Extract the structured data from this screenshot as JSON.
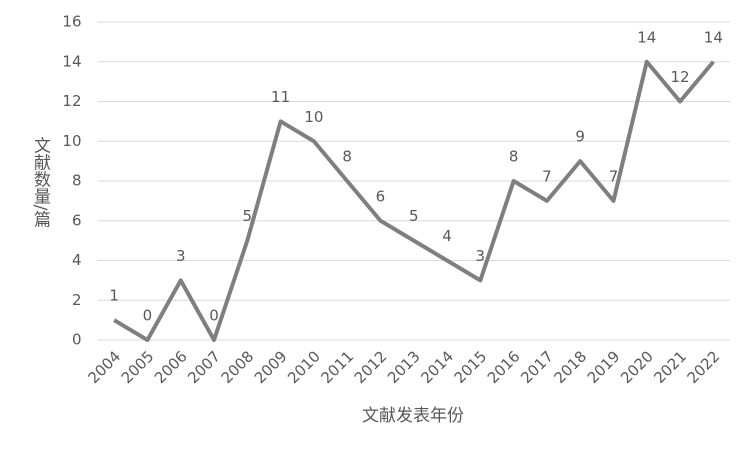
{
  "chart_data": {
    "type": "line",
    "x_label": "文献发表年份",
    "y_label": "文献数量/篇",
    "categories": [
      "2004",
      "2005",
      "2006",
      "2007",
      "2008",
      "2009",
      "2010",
      "2011",
      "2012",
      "2013",
      "2014",
      "2015",
      "2016",
      "2017",
      "2018",
      "2019",
      "2020",
      "2021",
      "2022"
    ],
    "values": [
      1,
      0,
      3,
      0,
      5,
      11,
      10,
      8,
      6,
      5,
      4,
      3,
      8,
      7,
      9,
      7,
      14,
      12,
      14
    ],
    "color": "#7f7f7f",
    "ylim": [
      0,
      16
    ],
    "yticks": [
      0,
      2,
      4,
      6,
      8,
      10,
      12,
      14,
      16
    ],
    "grid": true
  }
}
